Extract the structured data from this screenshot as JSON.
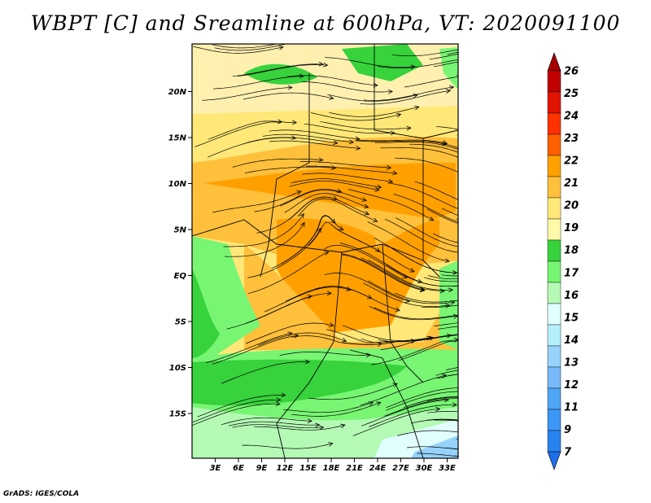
{
  "title": "WBPT [C] and Sreamline at 600hPa, VT: 2020091100",
  "footer": "GrADS: IGES/COLA",
  "lat_ticks": [
    {
      "label": "20N",
      "lat": 20
    },
    {
      "label": "15N",
      "lat": 15
    },
    {
      "label": "10N",
      "lat": 10
    },
    {
      "label": "5N",
      "lat": 5
    },
    {
      "label": "EQ",
      "lat": 0
    },
    {
      "label": "5S",
      "lat": -5
    },
    {
      "label": "10S",
      "lat": -10
    },
    {
      "label": "15S",
      "lat": -15
    }
  ],
  "lon_ticks": [
    {
      "label": "3E",
      "lon": 3
    },
    {
      "label": "6E",
      "lon": 6
    },
    {
      "label": "9E",
      "lon": 9
    },
    {
      "label": "12E",
      "lon": 12
    },
    {
      "label": "15E",
      "lon": 15
    },
    {
      "label": "18E",
      "lon": 18
    },
    {
      "label": "21E",
      "lon": 21
    },
    {
      "label": "24E",
      "lon": 24
    },
    {
      "label": "27E",
      "lon": 27
    },
    {
      "label": "30E",
      "lon": 30
    },
    {
      "label": "33E",
      "lon": 33
    }
  ],
  "colorbar": [
    {
      "label": "7",
      "color": "#1e6eeb"
    },
    {
      "label": "9",
      "color": "#2882f0"
    },
    {
      "label": "11",
      "color": "#3c96f5"
    },
    {
      "label": "12",
      "color": "#50a5f5"
    },
    {
      "label": "13",
      "color": "#78b9fa"
    },
    {
      "label": "14",
      "color": "#96d2fa"
    },
    {
      "label": "15",
      "color": "#b4f0fa"
    },
    {
      "label": "16",
      "color": "#e1ffff"
    },
    {
      "label": "17",
      "color": "#b4fab4"
    },
    {
      "label": "18",
      "color": "#78f573"
    },
    {
      "label": "19",
      "color": "#37d23c"
    },
    {
      "label": "20",
      "color": "#fffaaa"
    },
    {
      "label": "21",
      "color": "#ffe878"
    },
    {
      "label": "22",
      "color": "#ffc03c"
    },
    {
      "label": "23",
      "color": "#ffa000"
    },
    {
      "label": "24",
      "color": "#ff6000"
    },
    {
      "label": "25",
      "color": "#ff3200"
    },
    {
      "label": "26",
      "color": "#e11400"
    },
    {
      "label": "",
      "color": "#c00000"
    },
    {
      "label": "",
      "color": "#a50000"
    }
  ]
}
